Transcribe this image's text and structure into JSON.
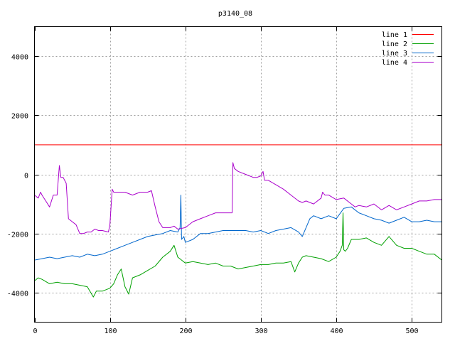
{
  "chart_data": {
    "type": "line",
    "title": "p3140_08",
    "xlim": [
      0,
      540
    ],
    "ylim": [
      -5000,
      5000
    ],
    "xticks": [
      0,
      100,
      200,
      300,
      400,
      500
    ],
    "yticks": [
      -4000,
      -2000,
      0,
      2000,
      4000
    ],
    "grid": true,
    "legend_position": "top-right",
    "series": [
      {
        "name": "line 1",
        "color": "#ff0000",
        "x": [
          0,
          540
        ],
        "y": [
          1000,
          1000
        ]
      },
      {
        "name": "line 2",
        "color": "#00a000",
        "x": [
          0,
          5,
          10,
          20,
          30,
          40,
          50,
          60,
          70,
          78,
          82,
          90,
          100,
          105,
          110,
          115,
          120,
          125,
          130,
          140,
          150,
          160,
          170,
          180,
          185,
          190,
          195,
          200,
          210,
          220,
          230,
          240,
          250,
          260,
          270,
          280,
          290,
          300,
          310,
          320,
          330,
          340,
          345,
          350,
          355,
          360,
          370,
          380,
          390,
          400,
          405,
          408,
          409,
          410,
          412,
          415,
          420,
          430,
          440,
          450,
          460,
          470,
          480,
          490,
          500,
          510,
          520,
          530,
          540
        ],
        "y": [
          -3600,
          -3500,
          -3550,
          -3700,
          -3650,
          -3700,
          -3700,
          -3750,
          -3800,
          -4150,
          -3950,
          -3950,
          -3850,
          -3700,
          -3400,
          -3200,
          -3800,
          -4050,
          -3500,
          -3400,
          -3250,
          -3100,
          -2800,
          -2600,
          -2400,
          -2800,
          -2900,
          -3000,
          -2950,
          -3000,
          -3050,
          -3000,
          -3100,
          -3100,
          -3200,
          -3150,
          -3100,
          -3050,
          -3050,
          -3000,
          -3000,
          -2950,
          -3300,
          -3000,
          -2800,
          -2750,
          -2800,
          -2850,
          -2950,
          -2800,
          -2600,
          -2400,
          -1300,
          -2550,
          -2600,
          -2500,
          -2200,
          -2200,
          -2150,
          -2300,
          -2400,
          -2100,
          -2400,
          -2500,
          -2500,
          -2600,
          -2700,
          -2700,
          -2900
        ]
      },
      {
        "name": "line 3",
        "color": "#0066cc",
        "x": [
          0,
          10,
          20,
          30,
          40,
          50,
          60,
          70,
          80,
          90,
          100,
          110,
          120,
          130,
          140,
          150,
          160,
          170,
          180,
          190,
          193,
          194,
          195,
          198,
          200,
          210,
          220,
          230,
          240,
          250,
          260,
          270,
          280,
          290,
          300,
          310,
          320,
          330,
          340,
          350,
          355,
          360,
          365,
          370,
          380,
          390,
          400,
          410,
          420,
          430,
          440,
          450,
          460,
          470,
          480,
          490,
          500,
          510,
          520,
          530,
          540
        ],
        "y": [
          -2900,
          -2850,
          -2800,
          -2850,
          -2800,
          -2750,
          -2800,
          -2700,
          -2750,
          -2700,
          -2600,
          -2500,
          -2400,
          -2300,
          -2200,
          -2100,
          -2050,
          -2000,
          -1900,
          -1950,
          -1800,
          -700,
          -2200,
          -2100,
          -2300,
          -2200,
          -2000,
          -2000,
          -1950,
          -1900,
          -1900,
          -1900,
          -1900,
          -1950,
          -1900,
          -2000,
          -1900,
          -1850,
          -1800,
          -1950,
          -2100,
          -1800,
          -1500,
          -1400,
          -1500,
          -1400,
          -1500,
          -1150,
          -1100,
          -1300,
          -1400,
          -1500,
          -1550,
          -1650,
          -1550,
          -1450,
          -1600,
          -1600,
          -1550,
          -1600,
          -1600
        ]
      },
      {
        "name": "line 4",
        "color": "#aa00cc",
        "x": [
          0,
          5,
          8,
          10,
          15,
          20,
          25,
          30,
          33,
          35,
          38,
          42,
          45,
          50,
          55,
          60,
          65,
          70,
          75,
          80,
          85,
          90,
          98,
          100,
          103,
          105,
          110,
          120,
          130,
          140,
          150,
          155,
          160,
          165,
          170,
          180,
          185,
          190,
          200,
          210,
          220,
          230,
          240,
          250,
          255,
          258,
          260,
          262,
          263,
          265,
          270,
          280,
          290,
          295,
          300,
          303,
          305,
          310,
          320,
          330,
          340,
          350,
          355,
          360,
          370,
          380,
          382,
          385,
          390,
          400,
          410,
          420,
          425,
          430,
          440,
          450,
          460,
          470,
          480,
          490,
          500,
          510,
          520,
          530,
          540
        ],
        "y": [
          -700,
          -800,
          -600,
          -700,
          -900,
          -1100,
          -700,
          -700,
          300,
          -100,
          -100,
          -300,
          -1500,
          -1600,
          -1700,
          -2000,
          -2000,
          -1950,
          -1950,
          -1850,
          -1900,
          -1900,
          -1950,
          -1700,
          -500,
          -600,
          -600,
          -600,
          -700,
          -600,
          -600,
          -550,
          -1100,
          -1600,
          -1800,
          -1800,
          -1750,
          -1850,
          -1800,
          -1600,
          -1500,
          -1400,
          -1300,
          -1300,
          -1300,
          -1300,
          -1300,
          -1300,
          400,
          200,
          100,
          0,
          -100,
          -100,
          -50,
          100,
          -200,
          -200,
          -350,
          -500,
          -700,
          -900,
          -950,
          -900,
          -1000,
          -800,
          -600,
          -700,
          -700,
          -850,
          -800,
          -1000,
          -1100,
          -1050,
          -1100,
          -1000,
          -1200,
          -1050,
          -1200,
          -1100,
          -1000,
          -900,
          -900,
          -850,
          -850
        ]
      }
    ]
  }
}
